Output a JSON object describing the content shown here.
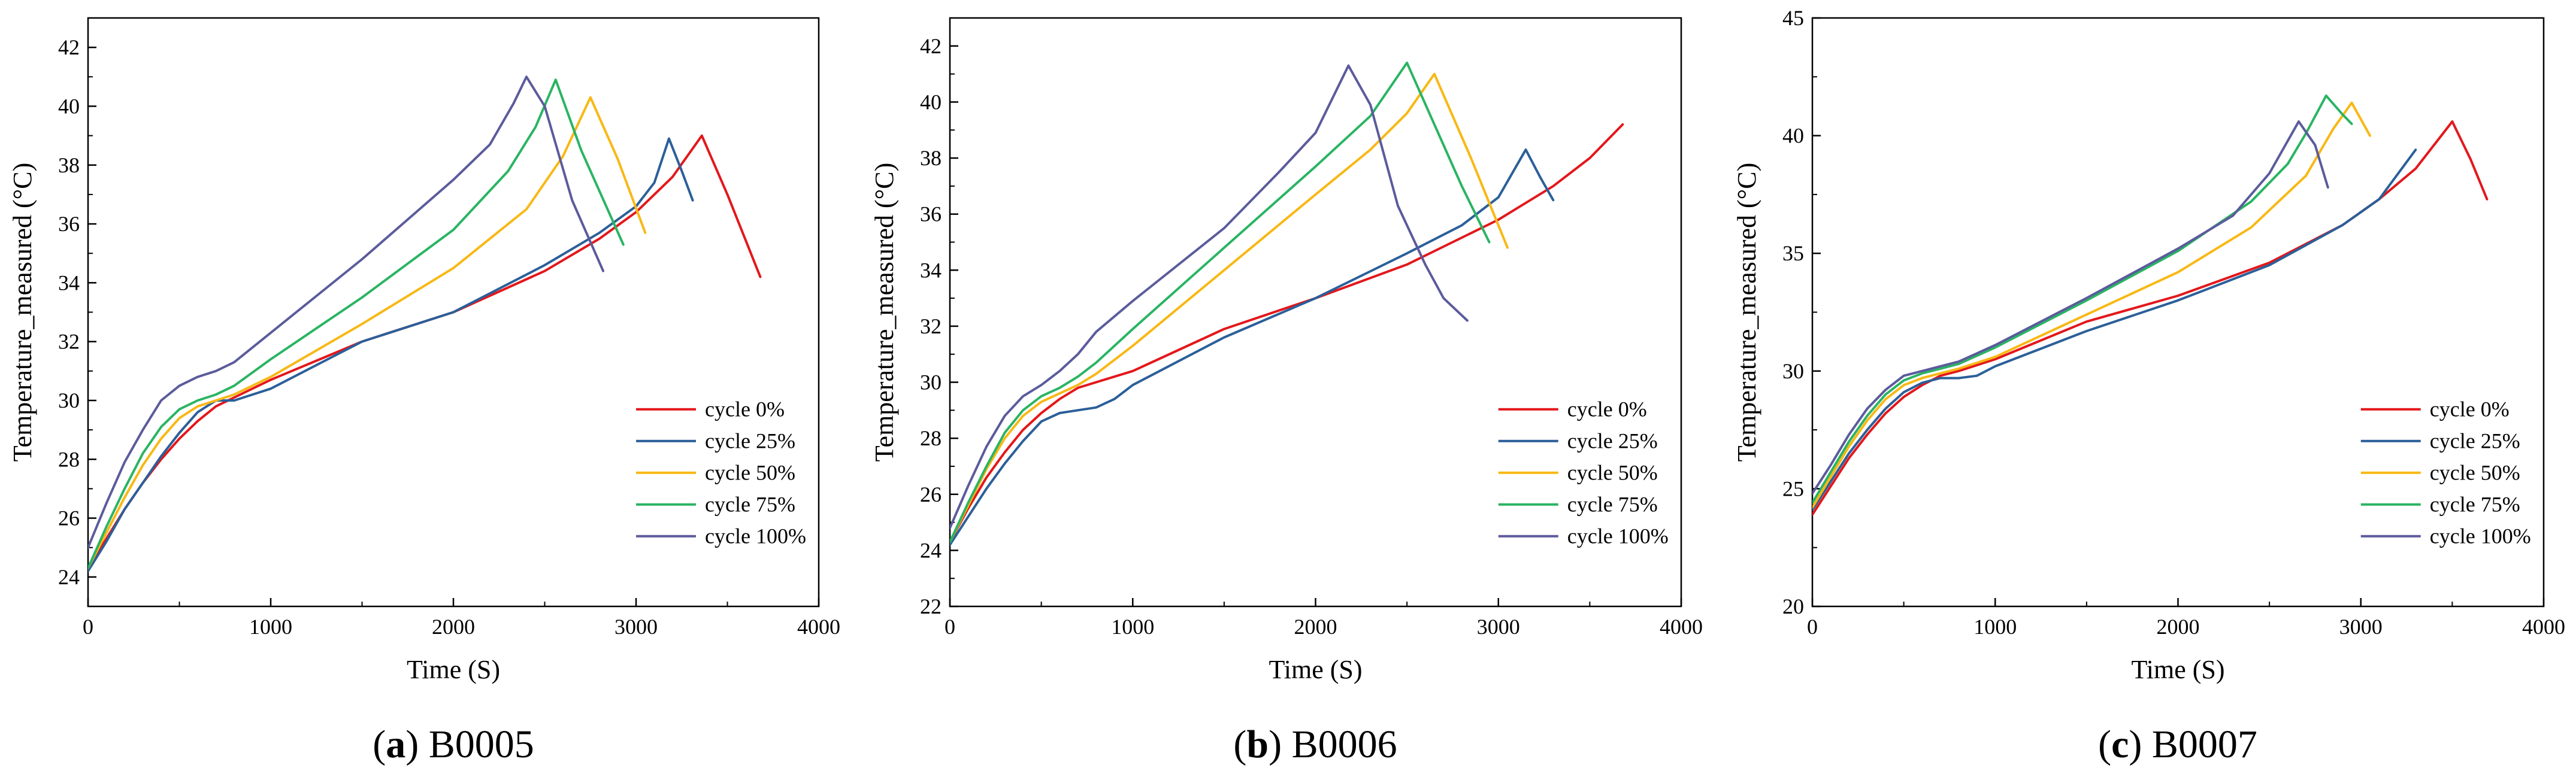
{
  "figure": {
    "colors": {
      "cycle_0": "#e3171b",
      "cycle_25": "#2b5f99",
      "cycle_50": "#f8b814",
      "cycle_75": "#2ab463",
      "cycle_100": "#5b5b9c"
    }
  },
  "chart_data": [
    {
      "type": "line",
      "panel": "a",
      "caption": {
        "letter": "a",
        "name": "B0005"
      },
      "xlabel": "Time (S)",
      "ylabel": "Temperature_measured (°C)",
      "xlim": [
        0,
        4000
      ],
      "ylim": [
        23,
        43
      ],
      "xticks": [
        0,
        1000,
        2000,
        3000,
        4000
      ],
      "xtick_labels": [
        "0",
        "1000",
        "2000",
        "3000",
        "4000"
      ],
      "yticks": [
        24,
        26,
        28,
        30,
        32,
        34,
        36,
        38,
        40,
        42
      ],
      "ytick_labels": [
        "24",
        "26",
        "28",
        "30",
        "32",
        "34",
        "36",
        "38",
        "40",
        "42"
      ],
      "legend_position": "lower-right",
      "series": [
        {
          "name": "cycle 0%",
          "color_key": "cycle_0",
          "x": [
            0,
            100,
            200,
            300,
            400,
            500,
            600,
            700,
            800,
            1000,
            1500,
            2000,
            2500,
            2800,
            3000,
            3200,
            3360,
            3500,
            3680
          ],
          "y": [
            24.3,
            25.3,
            26.3,
            27.2,
            28.0,
            28.7,
            29.3,
            29.8,
            30.1,
            30.7,
            32.0,
            33.0,
            34.4,
            35.5,
            36.4,
            37.6,
            39.0,
            37.0,
            34.2
          ]
        },
        {
          "name": "cycle 25%",
          "color_key": "cycle_25",
          "x": [
            0,
            100,
            200,
            300,
            400,
            500,
            600,
            700,
            800,
            1000,
            1500,
            2000,
            2500,
            2800,
            3000,
            3100,
            3180,
            3250,
            3310
          ],
          "y": [
            24.2,
            25.2,
            26.3,
            27.2,
            28.1,
            28.9,
            29.6,
            30.0,
            30.0,
            30.4,
            32.0,
            33.0,
            34.6,
            35.7,
            36.6,
            37.4,
            38.9,
            37.8,
            36.8
          ]
        },
        {
          "name": "cycle 50%",
          "color_key": "cycle_50",
          "x": [
            0,
            100,
            200,
            300,
            400,
            500,
            600,
            700,
            800,
            1000,
            1500,
            2000,
            2400,
            2600,
            2750,
            2900,
            3050
          ],
          "y": [
            24.3,
            25.5,
            26.7,
            27.8,
            28.7,
            29.4,
            29.8,
            30.0,
            30.2,
            30.8,
            32.6,
            34.5,
            36.5,
            38.3,
            40.3,
            38.2,
            35.7
          ]
        },
        {
          "name": "cycle 75%",
          "color_key": "cycle_75",
          "x": [
            0,
            100,
            200,
            300,
            400,
            500,
            600,
            700,
            800,
            1000,
            1500,
            2000,
            2300,
            2450,
            2560,
            2700,
            2930
          ],
          "y": [
            24.3,
            25.7,
            27.0,
            28.2,
            29.1,
            29.7,
            30.0,
            30.2,
            30.5,
            31.4,
            33.5,
            35.8,
            37.8,
            39.3,
            40.9,
            38.5,
            35.3
          ]
        },
        {
          "name": "cycle 100%",
          "color_key": "cycle_100",
          "x": [
            0,
            100,
            200,
            300,
            400,
            500,
            600,
            700,
            800,
            1000,
            1500,
            2000,
            2200,
            2330,
            2400,
            2500,
            2650,
            2820
          ],
          "y": [
            25.0,
            26.5,
            27.9,
            29.0,
            30.0,
            30.5,
            30.8,
            31.0,
            31.3,
            32.3,
            34.8,
            37.5,
            38.7,
            40.1,
            41.0,
            40.0,
            36.8,
            34.4
          ]
        }
      ]
    },
    {
      "type": "line",
      "panel": "b",
      "caption": {
        "letter": "b",
        "name": "B0006"
      },
      "xlabel": "Time (S)",
      "ylabel": "Temperature_measured (°C)",
      "xlim": [
        0,
        4000
      ],
      "ylim": [
        22,
        43
      ],
      "xticks": [
        0,
        1000,
        2000,
        3000,
        4000
      ],
      "xtick_labels": [
        "0",
        "1000",
        "2000",
        "3000",
        "4000"
      ],
      "yticks": [
        22,
        24,
        26,
        28,
        30,
        32,
        34,
        36,
        38,
        40,
        42
      ],
      "ytick_labels": [
        "22",
        "24",
        "26",
        "28",
        "30",
        "32",
        "34",
        "36",
        "38",
        "40",
        "42"
      ],
      "legend_position": "lower-right",
      "series": [
        {
          "name": "cycle 0%",
          "color_key": "cycle_0",
          "x": [
            0,
            100,
            200,
            300,
            400,
            500,
            600,
            700,
            800,
            1000,
            1500,
            2000,
            2500,
            3000,
            3300,
            3500,
            3680
          ],
          "y": [
            24.3,
            25.5,
            26.6,
            27.5,
            28.3,
            28.9,
            29.4,
            29.8,
            30.0,
            30.4,
            31.9,
            33.0,
            34.2,
            35.8,
            37.0,
            38.0,
            39.2
          ]
        },
        {
          "name": "cycle 25%",
          "color_key": "cycle_25",
          "x": [
            0,
            100,
            200,
            300,
            400,
            500,
            600,
            700,
            800,
            900,
            1000,
            1500,
            2000,
            2500,
            2800,
            3000,
            3150,
            3230,
            3300
          ],
          "y": [
            24.2,
            25.2,
            26.2,
            27.1,
            27.9,
            28.6,
            28.9,
            29.0,
            29.1,
            29.4,
            29.9,
            31.6,
            33.0,
            34.6,
            35.6,
            36.6,
            38.3,
            37.3,
            36.5
          ]
        },
        {
          "name": "cycle 50%",
          "color_key": "cycle_50",
          "x": [
            0,
            100,
            200,
            300,
            400,
            500,
            600,
            700,
            800,
            1000,
            1500,
            2000,
            2300,
            2500,
            2650,
            2850,
            3050
          ],
          "y": [
            24.3,
            25.6,
            26.9,
            28.0,
            28.8,
            29.3,
            29.6,
            29.9,
            30.3,
            31.3,
            34.0,
            36.7,
            38.3,
            39.6,
            41.0,
            38.0,
            34.8
          ]
        },
        {
          "name": "cycle 75%",
          "color_key": "cycle_75",
          "x": [
            0,
            100,
            200,
            300,
            400,
            500,
            600,
            700,
            800,
            1000,
            1500,
            2000,
            2300,
            2500,
            2650,
            2800,
            2950
          ],
          "y": [
            24.3,
            25.7,
            27.0,
            28.2,
            29.0,
            29.5,
            29.8,
            30.2,
            30.7,
            31.9,
            34.8,
            37.7,
            39.5,
            41.4,
            39.2,
            37.0,
            35.0
          ]
        },
        {
          "name": "cycle 100%",
          "color_key": "cycle_100",
          "x": [
            0,
            100,
            200,
            300,
            400,
            500,
            600,
            700,
            800,
            1000,
            1500,
            1800,
            2000,
            2180,
            2300,
            2450,
            2600,
            2700,
            2830
          ],
          "y": [
            24.8,
            26.3,
            27.7,
            28.8,
            29.5,
            29.9,
            30.4,
            31.0,
            31.8,
            32.9,
            35.5,
            37.5,
            38.9,
            41.3,
            39.9,
            36.3,
            34.2,
            33.0,
            32.2
          ]
        }
      ]
    },
    {
      "type": "line",
      "panel": "c",
      "caption": {
        "letter": "c",
        "name": "B0007"
      },
      "xlabel": "Time (S)",
      "ylabel": "Temperature_measured (°C)",
      "xlim": [
        0,
        4000
      ],
      "ylim": [
        20,
        45
      ],
      "xticks": [
        0,
        1000,
        2000,
        3000,
        4000
      ],
      "xtick_labels": [
        "0",
        "1000",
        "2000",
        "3000",
        "4000"
      ],
      "yticks": [
        20,
        25,
        30,
        35,
        40,
        45
      ],
      "ytick_labels": [
        "20",
        "25",
        "30",
        "35",
        "40",
        "45"
      ],
      "legend_position": "lower-right",
      "series": [
        {
          "name": "cycle 0%",
          "color_key": "cycle_0",
          "x": [
            0,
            100,
            200,
            300,
            400,
            500,
            600,
            700,
            800,
            1000,
            1500,
            2000,
            2500,
            2900,
            3100,
            3300,
            3420,
            3500,
            3600,
            3690
          ],
          "y": [
            23.9,
            25.1,
            26.3,
            27.3,
            28.2,
            28.9,
            29.4,
            29.8,
            30.0,
            30.5,
            32.1,
            33.2,
            34.6,
            36.2,
            37.3,
            38.6,
            39.8,
            40.6,
            39.0,
            37.3
          ]
        },
        {
          "name": "cycle 25%",
          "color_key": "cycle_25",
          "x": [
            0,
            100,
            200,
            300,
            400,
            500,
            600,
            700,
            800,
            900,
            1000,
            1500,
            2000,
            2500,
            2900,
            3100,
            3300
          ],
          "y": [
            24.1,
            25.3,
            26.5,
            27.5,
            28.4,
            29.1,
            29.5,
            29.7,
            29.7,
            29.8,
            30.2,
            31.7,
            33.0,
            34.5,
            36.2,
            37.3,
            39.4
          ]
        },
        {
          "name": "cycle 50%",
          "color_key": "cycle_50",
          "x": [
            0,
            100,
            200,
            300,
            400,
            500,
            600,
            700,
            800,
            1000,
            1500,
            2000,
            2400,
            2700,
            2850,
            2950,
            3050
          ],
          "y": [
            24.2,
            25.5,
            26.8,
            27.9,
            28.8,
            29.4,
            29.7,
            29.9,
            30.1,
            30.6,
            32.4,
            34.2,
            36.1,
            38.3,
            40.3,
            41.4,
            40.0
          ]
        },
        {
          "name": "cycle 75%",
          "color_key": "cycle_75",
          "x": [
            0,
            100,
            200,
            300,
            400,
            500,
            600,
            700,
            800,
            1000,
            1500,
            2000,
            2400,
            2600,
            2700,
            2810,
            2900,
            2950
          ],
          "y": [
            24.4,
            25.7,
            27.0,
            28.1,
            29.0,
            29.6,
            29.9,
            30.1,
            30.3,
            31.0,
            33.0,
            35.1,
            37.2,
            38.8,
            40.1,
            41.7,
            40.9,
            40.5
          ]
        },
        {
          "name": "cycle 100%",
          "color_key": "cycle_100",
          "x": [
            0,
            100,
            200,
            300,
            400,
            500,
            600,
            700,
            800,
            1000,
            1500,
            2000,
            2300,
            2500,
            2660,
            2750,
            2820
          ],
          "y": [
            24.8,
            26.0,
            27.3,
            28.4,
            29.2,
            29.8,
            30.0,
            30.2,
            30.4,
            31.1,
            33.1,
            35.2,
            36.6,
            38.4,
            40.6,
            39.6,
            37.8
          ]
        }
      ]
    }
  ]
}
